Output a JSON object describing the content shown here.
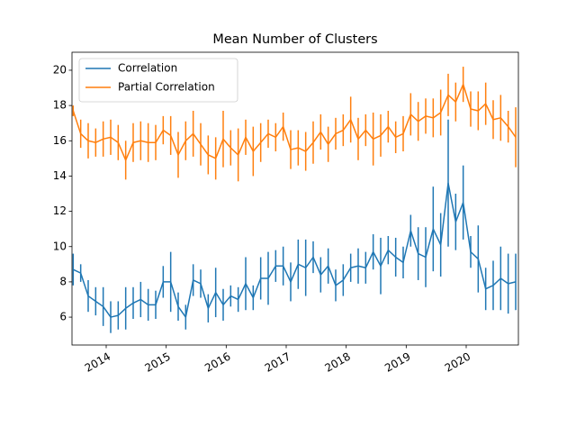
{
  "chart_data": {
    "type": "errorbar-line",
    "title": "Mean Number of Clusters",
    "x": [
      2013.45,
      2013.575,
      2013.7,
      2013.825,
      2013.95,
      2014.075,
      2014.2,
      2014.325,
      2014.45,
      2014.575,
      2014.7,
      2014.825,
      2014.95,
      2015.075,
      2015.2,
      2015.325,
      2015.45,
      2015.575,
      2015.7,
      2015.825,
      2015.95,
      2016.075,
      2016.2,
      2016.325,
      2016.45,
      2016.575,
      2016.7,
      2016.825,
      2016.95,
      2017.075,
      2017.2,
      2017.325,
      2017.45,
      2017.575,
      2017.7,
      2017.825,
      2017.95,
      2018.075,
      2018.2,
      2018.325,
      2018.45,
      2018.575,
      2018.7,
      2018.825,
      2018.95,
      2019.075,
      2019.2,
      2019.325,
      2019.45,
      2019.575,
      2019.7,
      2019.825,
      2019.95,
      2020.075,
      2020.2,
      2020.325,
      2020.45,
      2020.575,
      2020.7,
      2020.825
    ],
    "series": [
      {
        "name": "Correlation",
        "color": "#1f77b4",
        "values": [
          8.7,
          8.5,
          7.2,
          6.9,
          6.6,
          6.0,
          6.1,
          6.5,
          6.8,
          7.0,
          6.7,
          6.7,
          8.0,
          8.0,
          6.6,
          6.0,
          8.1,
          7.9,
          6.5,
          7.4,
          6.7,
          7.2,
          7.0,
          7.9,
          7.1,
          8.2,
          8.2,
          8.9,
          8.9,
          8.0,
          9.0,
          8.8,
          9.4,
          8.4,
          8.9,
          7.8,
          8.1,
          8.8,
          8.9,
          8.8,
          9.7,
          8.9,
          9.8,
          9.4,
          9.1,
          10.9,
          9.6,
          9.4,
          11.0,
          10.1,
          13.6,
          11.4,
          12.5,
          9.7,
          9.3,
          7.6,
          7.8,
          8.2,
          7.9,
          8.0
        ],
        "errors": [
          0.9,
          0.5,
          0.9,
          0.8,
          1.1,
          0.9,
          0.8,
          1.2,
          0.9,
          1.0,
          0.9,
          0.8,
          0.9,
          1.7,
          0.8,
          0.7,
          0.9,
          0.8,
          0.8,
          1.4,
          0.9,
          0.6,
          0.7,
          1.5,
          0.7,
          1.2,
          1.5,
          0.9,
          1.1,
          1.1,
          1.4,
          1.6,
          0.9,
          1.0,
          1.0,
          0.9,
          0.9,
          0.8,
          1.0,
          0.9,
          1.0,
          1.6,
          0.8,
          1.1,
          0.9,
          0.9,
          1.5,
          1.7,
          2.4,
          1.8,
          3.6,
          1.6,
          2.1,
          0.9,
          1.9,
          1.2,
          1.4,
          1.8,
          1.7,
          1.6
        ]
      },
      {
        "name": "Partial Correlation",
        "color": "#ff7f0e",
        "values": [
          17.7,
          16.4,
          16.0,
          15.9,
          16.1,
          16.2,
          15.9,
          14.9,
          15.9,
          16.0,
          15.9,
          15.9,
          16.6,
          16.3,
          15.2,
          16.0,
          16.4,
          15.8,
          15.2,
          15.0,
          16.1,
          15.6,
          15.2,
          16.2,
          15.4,
          15.9,
          16.4,
          16.2,
          16.8,
          15.5,
          15.6,
          15.4,
          15.9,
          16.5,
          15.8,
          16.4,
          16.6,
          17.2,
          16.1,
          16.6,
          16.1,
          16.3,
          16.8,
          16.2,
          16.4,
          17.5,
          17.1,
          17.4,
          17.3,
          17.6,
          18.6,
          18.2,
          19.2,
          17.8,
          17.7,
          18.1,
          17.2,
          17.3,
          16.8,
          16.2
        ],
        "errors": [
          0.3,
          0.8,
          1.0,
          0.8,
          1.0,
          1.0,
          1.0,
          1.1,
          1.1,
          1.1,
          1.1,
          1.0,
          0.8,
          1.1,
          1.3,
          1.1,
          1.3,
          1.2,
          1.1,
          1.2,
          1.6,
          1.0,
          1.5,
          1.0,
          1.4,
          1.1,
          0.8,
          0.8,
          0.8,
          1.1,
          1.0,
          1.1,
          1.2,
          1.0,
          1.0,
          0.9,
          0.9,
          1.3,
          1.2,
          0.9,
          1.5,
          1.2,
          0.9,
          0.9,
          1.0,
          1.2,
          1.1,
          1.0,
          1.1,
          1.3,
          1.2,
          1.1,
          1.0,
          1.0,
          1.1,
          1.2,
          1.1,
          1.3,
          0.9,
          1.7
        ]
      }
    ],
    "xlim": [
      2013.43,
      2020.87
    ],
    "xticks": [
      2014,
      2015,
      2016,
      2017,
      2018,
      2019,
      2020
    ],
    "ylim": [
      4.42,
      21.02
    ],
    "yticks": [
      6,
      8,
      10,
      12,
      14,
      16,
      18,
      20
    ],
    "legend": "upper left"
  }
}
